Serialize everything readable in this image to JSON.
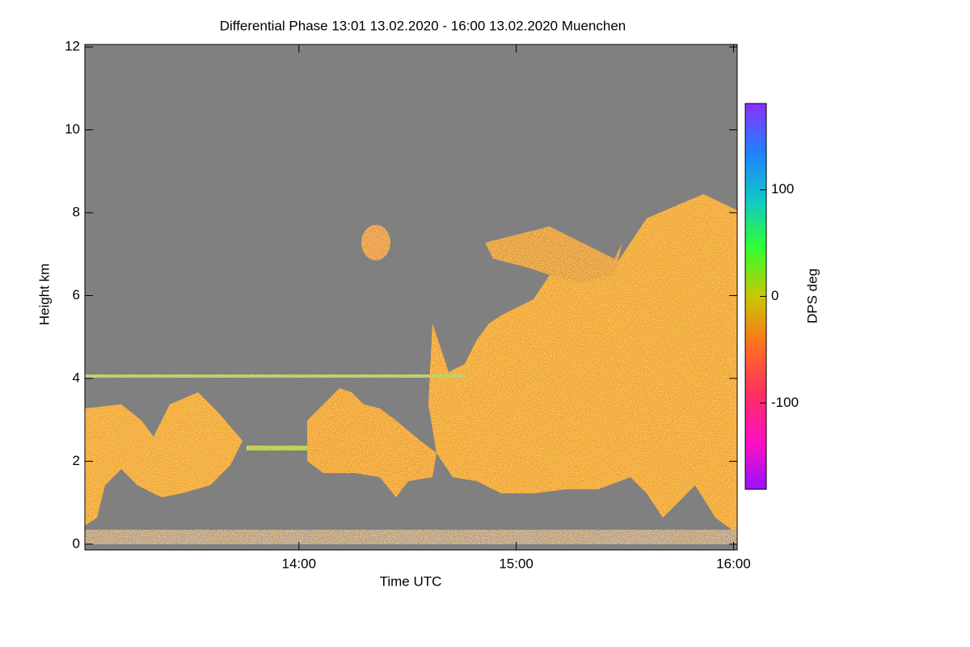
{
  "chart_data": {
    "type": "heatmap",
    "title": "Differential Phase   13:01 13.02.2020 - 16:00 13.02.2020 Muenchen",
    "x_label": "Time UTC",
    "y_label": "Height km",
    "colorbar_label": "DPS deg",
    "xlim": [
      13.015,
      16.017
    ],
    "xticks": [
      {
        "value": 14,
        "label": "14:00"
      },
      {
        "value": 15,
        "label": "15:00"
      },
      {
        "value": 16,
        "label": "16:00"
      }
    ],
    "ylim": [
      -0.14,
      12.06
    ],
    "yticks": [
      0,
      2,
      4,
      6,
      8,
      10,
      12
    ],
    "clim": [
      -181,
      181
    ],
    "cticks": [
      -100,
      0,
      100
    ],
    "background_color": "#808080",
    "colormap": [
      "#9a10ff",
      "#ff10c0",
      "#ff3060",
      "#ff7020",
      "#c8c800",
      "#30ff30",
      "#10c8c8",
      "#2080ff",
      "#8a30ff"
    ]
  }
}
